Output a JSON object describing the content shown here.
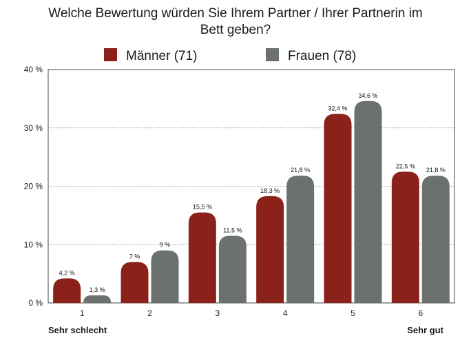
{
  "chart_data": {
    "type": "bar",
    "title_lines": [
      "Welche Bewertung würden Sie Ihrem Partner / Ihrer Partnerin im",
      "Bett geben?"
    ],
    "categories": [
      "1",
      "2",
      "3",
      "4",
      "5",
      "6"
    ],
    "series": [
      {
        "name": "Männer (71)",
        "color": "#8b2219",
        "values": [
          4.2,
          7,
          15.5,
          18.3,
          32.4,
          22.5
        ],
        "labels": [
          "4,2 %",
          "7 %",
          "15,5 %",
          "18,3 %",
          "32,4 %",
          "22,5 %"
        ]
      },
      {
        "name": "Frauen (78)",
        "color": "#6b716e",
        "values": [
          1.3,
          9,
          11.5,
          21.8,
          34.6,
          21.8
        ],
        "labels": [
          "1,3 %",
          "9 %",
          "11,5 %",
          "21,8 %",
          "34,6 %",
          "21,8 %"
        ]
      }
    ],
    "ylim": [
      0,
      40
    ],
    "yticks": [
      0,
      10,
      20,
      30,
      40
    ],
    "ytick_labels": [
      "0 %",
      "10 %",
      "20 %",
      "30 %",
      "40 %"
    ],
    "x_end_labels": {
      "left": "Sehr schlecht",
      "right": "Sehr gut"
    },
    "grid": true,
    "legend_position": "top"
  }
}
